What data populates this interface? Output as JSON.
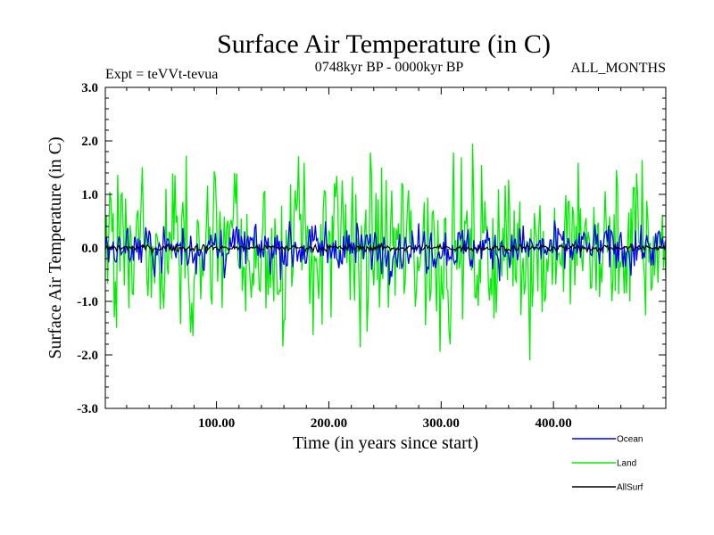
{
  "chart_data": {
    "type": "line",
    "title": "Surface Air Temperature (in C)",
    "subtitle_left": "Expt = teVVt-tevua",
    "subtitle_center": "0748kyr BP - 0000kyr BP",
    "subtitle_right": "ALL_MONTHS",
    "xlabel": "Time (in years since start)",
    "ylabel": "Surface Air Temperature (in C)",
    "xlim": [
      1,
      500
    ],
    "ylim": [
      -3.0,
      3.0
    ],
    "x_ticks": [
      100,
      200,
      300,
      400
    ],
    "x_tick_labels": [
      "100.00",
      "200.00",
      "300.00",
      "400.00"
    ],
    "y_ticks": [
      3.0,
      2.0,
      1.0,
      0.0,
      -1.0,
      -2.0,
      -3.0
    ],
    "y_tick_labels": [
      "3.0",
      "2.0",
      "1.0",
      "0.0",
      "-1.0",
      "-2.0",
      "-3.0"
    ],
    "grid": false,
    "legend_position": "bottom-right",
    "series": [
      {
        "name": "Land",
        "color": "#00ee00",
        "envelope_amplitude": 1.9,
        "extremes": {
          "max": 2.3,
          "min": -2.55
        },
        "mean": 0.0
      },
      {
        "name": "Ocean",
        "color": "#0000ee",
        "envelope_amplitude": 0.55,
        "extremes": {
          "max": 0.7,
          "min": -0.75
        },
        "mean": 0.0
      },
      {
        "name": "AllSurf",
        "color": "#000000",
        "envelope_amplitude": 0.08,
        "extremes": {
          "max": 0.1,
          "min": -0.1
        },
        "mean": 0.0
      }
    ],
    "legend_order": [
      "Ocean",
      "Land",
      "AllSurf"
    ]
  }
}
